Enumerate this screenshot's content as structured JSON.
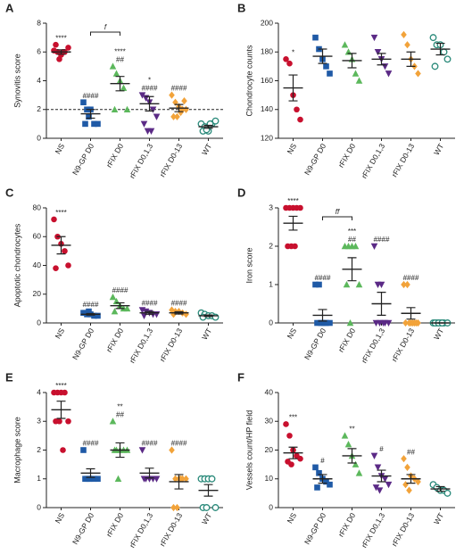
{
  "chart_data": [
    {
      "panel": "A",
      "type": "scatter",
      "ylabel": "Synovitis score",
      "categories": [
        "NS",
        "N9-GP D0",
        "rFIX D0",
        "rFIX D0,1,3",
        "rFIX D0-13",
        "WT"
      ],
      "colors": [
        "#c8102e",
        "#1f5aa6",
        "#5cb85c",
        "#5b2a86",
        "#f2a33a",
        "#2a8a7a"
      ],
      "markers": [
        "circle",
        "square",
        "triangle",
        "triangle-down",
        "diamond",
        "circle-open"
      ],
      "points": [
        [
          6.1,
          6,
          5.8,
          6,
          6.3,
          6.5,
          5.5,
          6
        ],
        [
          2.5,
          2,
          2,
          1,
          1,
          1,
          1.5
        ],
        [
          5,
          4.5,
          4,
          3.5,
          2,
          2
        ],
        [
          3,
          2.8,
          2.5,
          2,
          1.5,
          1,
          0.5,
          0.5
        ],
        [
          3,
          2.5,
          2.2,
          2,
          2,
          1.5,
          1.5,
          1.8,
          2.6
        ],
        [
          1,
          0.8,
          0.5,
          1,
          1.2,
          0.5,
          0.6,
          1
        ]
      ],
      "mean": [
        6,
        1.7,
        3.8,
        2.4,
        2.1,
        0.8
      ],
      "sem": [
        0.15,
        0.3,
        0.5,
        0.5,
        0.25,
        0.1
      ],
      "annotations": [
        [
          "****"
        ],
        [
          "####"
        ],
        [
          "****",
          "##"
        ],
        [
          "*",
          "####"
        ],
        [
          "####"
        ],
        []
      ],
      "bracket": {
        "from": 1,
        "to": 2,
        "label": "f"
      },
      "reference_line": 2,
      "ylim": [
        0,
        8
      ],
      "yticks": [
        0,
        2,
        4,
        6,
        8
      ]
    },
    {
      "panel": "B",
      "type": "scatter",
      "ylabel": "Chondrocyte counts",
      "categories": [
        "NS",
        "N9-GP D0",
        "rFIX D0",
        "rFIX D0,1,3",
        "rFIX D0-13",
        "WT"
      ],
      "colors": [
        "#c8102e",
        "#1f5aa6",
        "#5cb85c",
        "#5b2a86",
        "#f2a33a",
        "#2a8a7a"
      ],
      "markers": [
        "circle",
        "square",
        "triangle",
        "triangle-down",
        "diamond",
        "circle-open"
      ],
      "points": [
        [
          175,
          172,
          150,
          140,
          133
        ],
        [
          190,
          182,
          175,
          170,
          165
        ],
        [
          185,
          180,
          175,
          165,
          160
        ],
        [
          190,
          180,
          175,
          170,
          165
        ],
        [
          192,
          185,
          175,
          170,
          165
        ],
        [
          190,
          185,
          185,
          180,
          175,
          170
        ]
      ],
      "mean": [
        155,
        177,
        174,
        175,
        175,
        182
      ],
      "sem": [
        9,
        5,
        5,
        4,
        5,
        4
      ],
      "annotations": [
        [
          "*"
        ],
        [],
        [],
        [],
        [],
        []
      ],
      "ylim": [
        120,
        200
      ],
      "yticks": [
        120,
        140,
        160,
        180,
        200
      ]
    },
    {
      "panel": "C",
      "type": "scatter",
      "ylabel": "Apoptotic chondrocytes",
      "categories": [
        "NS",
        "N9-GP D0",
        "rFIX D0",
        "rFIX D0,1,3",
        "rFIX D0-13",
        "WT"
      ],
      "colors": [
        "#c8102e",
        "#1f5aa6",
        "#5cb85c",
        "#5b2a86",
        "#f2a33a",
        "#2a8a7a"
      ],
      "markers": [
        "circle",
        "square",
        "triangle",
        "triangle-down",
        "diamond",
        "circle-open"
      ],
      "points": [
        [
          72,
          60,
          55,
          50,
          40,
          38
        ],
        [
          7,
          6,
          6,
          5,
          5,
          7,
          8
        ],
        [
          18,
          15,
          12,
          10,
          10,
          8
        ],
        [
          9,
          8,
          7,
          6,
          6,
          5
        ],
        [
          9,
          8,
          8,
          7,
          6,
          6
        ],
        [
          7,
          6,
          5,
          5,
          4,
          4
        ]
      ],
      "mean": [
        54,
        6,
        12,
        7,
        7,
        5
      ],
      "sem": [
        6,
        0.5,
        2,
        1,
        0.8,
        0.5
      ],
      "annotations": [
        [
          "****"
        ],
        [
          "####"
        ],
        [
          "####"
        ],
        [
          "####"
        ],
        [
          "####"
        ],
        []
      ],
      "ylim": [
        0,
        80
      ],
      "yticks": [
        0,
        20,
        40,
        60,
        80
      ]
    },
    {
      "panel": "D",
      "type": "scatter",
      "ylabel": "Iron score",
      "categories": [
        "NS",
        "N9-GP D0",
        "rFIX D0",
        "rFIX D0,1,3",
        "rFIX D0-13",
        "WT"
      ],
      "colors": [
        "#c8102e",
        "#1f5aa6",
        "#5cb85c",
        "#5b2a86",
        "#f2a33a",
        "#2a8a7a"
      ],
      "markers": [
        "circle",
        "square",
        "triangle",
        "triangle-down",
        "diamond",
        "circle-open"
      ],
      "points": [
        [
          3,
          3,
          3,
          3,
          3,
          2,
          2,
          2
        ],
        [
          1,
          1,
          0,
          0,
          0,
          0,
          0,
          0
        ],
        [
          2,
          2,
          2,
          2,
          1,
          1,
          0
        ],
        [
          2,
          1,
          1,
          0,
          0,
          0,
          0,
          0
        ],
        [
          1,
          1,
          0,
          0,
          0,
          0,
          0,
          0,
          0
        ],
        [
          0,
          0,
          0,
          0,
          0,
          0,
          0,
          0
        ]
      ],
      "mean": [
        2.6,
        0.2,
        1.4,
        0.5,
        0.25,
        0
      ],
      "sem": [
        0.18,
        0.15,
        0.3,
        0.3,
        0.15,
        0
      ],
      "annotations": [
        [
          "****"
        ],
        [
          "####"
        ],
        [
          "***",
          "##"
        ],
        [
          "####"
        ],
        [
          "####"
        ],
        []
      ],
      "bracket": {
        "from": 1,
        "to": 2,
        "label": "ff"
      },
      "ylim": [
        0,
        3
      ],
      "yticks": [
        0,
        1,
        2,
        3
      ]
    },
    {
      "panel": "E",
      "type": "scatter",
      "ylabel": "Macrophage score",
      "categories": [
        "NS",
        "N9-GP D0",
        "rFIX D0",
        "rFIX D0,1,3",
        "rFIX D0-13",
        "WT"
      ],
      "colors": [
        "#c8102e",
        "#1f5aa6",
        "#5cb85c",
        "#5b2a86",
        "#f2a33a",
        "#2a8a7a"
      ],
      "markers": [
        "circle",
        "square",
        "triangle",
        "triangle-down",
        "diamond",
        "circle-open"
      ],
      "points": [
        [
          4,
          4,
          4,
          4,
          3,
          3,
          3,
          2
        ],
        [
          2,
          1,
          1,
          1,
          1,
          1,
          1
        ],
        [
          3,
          2,
          2,
          2,
          2,
          2,
          1
        ],
        [
          2,
          1,
          1,
          1,
          1,
          1
        ],
        [
          2,
          1,
          1,
          1,
          1,
          0,
          0,
          1
        ],
        [
          1,
          1,
          1,
          1,
          0,
          0,
          0
        ]
      ],
      "mean": [
        3.4,
        1.2,
        2,
        1.2,
        0.9,
        0.6
      ],
      "sem": [
        0.3,
        0.15,
        0.25,
        0.17,
        0.25,
        0.2
      ],
      "annotations": [
        [
          "****"
        ],
        [
          "####"
        ],
        [
          "**",
          "##"
        ],
        [
          "####"
        ],
        [
          "####"
        ],
        []
      ],
      "ylim": [
        0,
        4
      ],
      "yticks": [
        0,
        1,
        2,
        3,
        4
      ]
    },
    {
      "panel": "F",
      "type": "scatter",
      "ylabel": "Vessels count/HP field",
      "categories": [
        "NS",
        "N9-GP D0",
        "rFIX D0",
        "rFIX D0,1,3",
        "rFIX D0-13",
        "WT"
      ],
      "colors": [
        "#c8102e",
        "#1f5aa6",
        "#5cb85c",
        "#5b2a86",
        "#f2a33a",
        "#2a8a7a"
      ],
      "markers": [
        "circle",
        "square",
        "triangle",
        "triangle-down",
        "diamond",
        "circle-open"
      ],
      "points": [
        [
          29,
          25,
          20,
          18,
          17,
          16,
          15
        ],
        [
          14,
          12,
          10,
          9,
          8,
          7
        ],
        [
          25,
          22,
          18,
          15,
          12
        ],
        [
          18,
          14,
          11,
          10,
          8,
          7,
          6
        ],
        [
          17,
          14,
          11,
          10,
          9,
          8,
          6
        ],
        [
          8,
          7,
          6,
          6,
          5
        ]
      ],
      "mean": [
        19,
        10,
        18,
        11,
        10,
        6.5
      ],
      "sem": [
        2,
        1.5,
        2.5,
        2,
        1.5,
        0.8
      ],
      "annotations": [
        [
          "***"
        ],
        [
          "#"
        ],
        [
          "**"
        ],
        [
          "#"
        ],
        [
          "##"
        ],
        []
      ],
      "ylim": [
        0,
        40
      ],
      "yticks": [
        0,
        10,
        20,
        30,
        40
      ]
    }
  ]
}
